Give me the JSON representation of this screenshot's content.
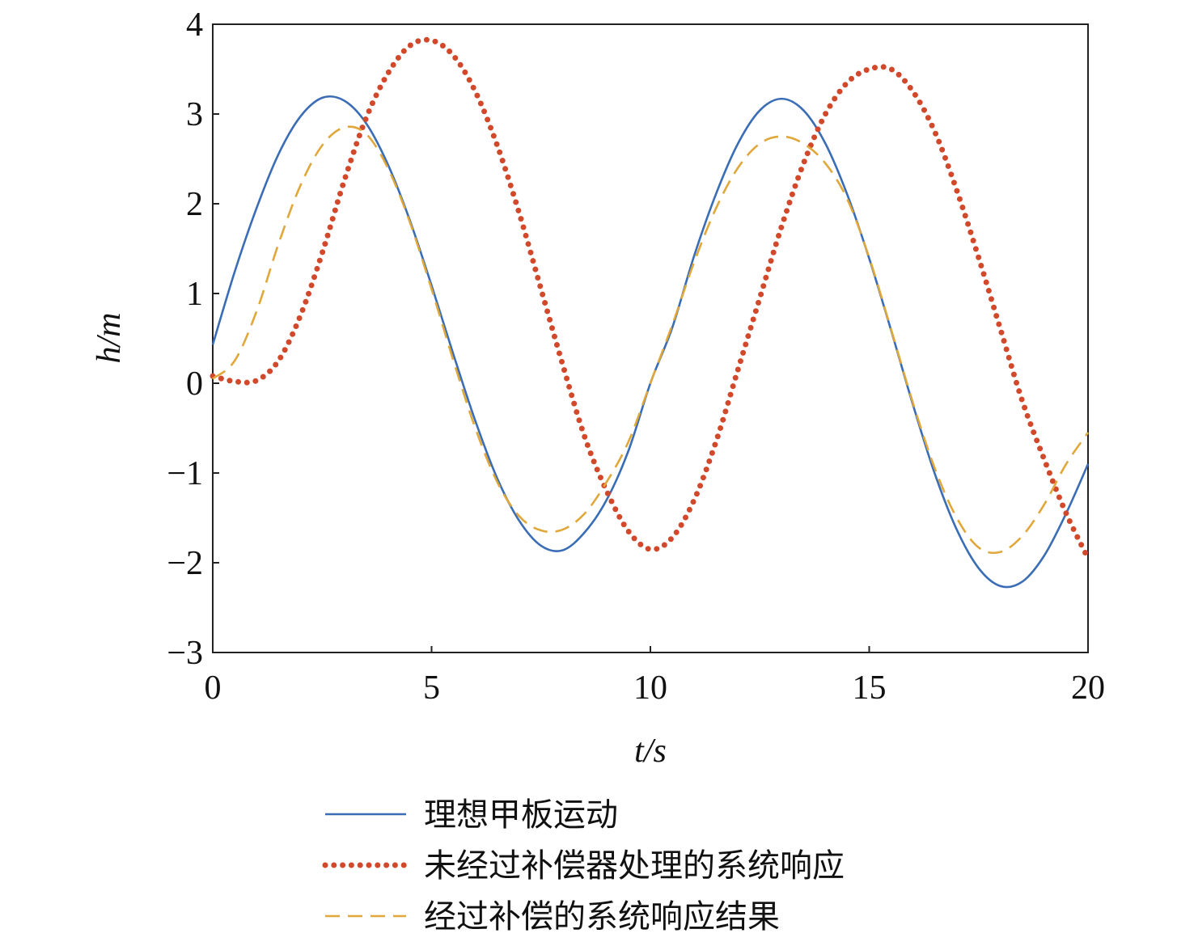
{
  "chart_data": {
    "type": "line",
    "x_label": "t/s",
    "y_label": "h/m",
    "x": [
      0,
      0.5,
      1,
      1.5,
      2,
      2.5,
      3,
      3.5,
      4,
      4.5,
      5,
      5.5,
      6,
      6.5,
      7,
      7.5,
      8,
      8.5,
      9,
      9.5,
      10,
      10.5,
      11,
      11.5,
      12,
      12.5,
      13,
      13.5,
      14,
      14.5,
      15,
      15.5,
      16,
      16.5,
      17,
      17.5,
      18,
      18.5,
      19,
      19.5,
      20
    ],
    "series": [
      {
        "name": "理想甲板运动",
        "color": "#3a6db5",
        "style": "solid",
        "values": [
          0.43,
          1.24,
          1.95,
          2.55,
          2.97,
          3.18,
          3.15,
          2.9,
          2.44,
          1.82,
          1.09,
          0.32,
          -0.42,
          -1.06,
          -1.53,
          -1.81,
          -1.86,
          -1.66,
          -1.3,
          -0.75,
          0.0,
          0.62,
          1.42,
          2.11,
          2.67,
          3.04,
          3.17,
          3.04,
          2.67,
          2.1,
          1.39,
          0.59,
          -0.24,
          -1.01,
          -1.63,
          -2.06,
          -2.26,
          -2.21,
          -1.92,
          -1.45,
          -0.9
        ]
      },
      {
        "name": "未经过补偿器处理的系统响应",
        "color": "#d2482a",
        "style": "dotted",
        "values": [
          0.08,
          0.02,
          0.03,
          0.25,
          0.75,
          1.45,
          2.25,
          2.95,
          3.45,
          3.76,
          3.82,
          3.65,
          3.25,
          2.65,
          1.9,
          1.05,
          0.2,
          -0.6,
          -1.2,
          -1.65,
          -1.85,
          -1.72,
          -1.3,
          -0.65,
          0.15,
          0.95,
          1.75,
          2.45,
          3.0,
          3.35,
          3.5,
          3.5,
          3.25,
          2.8,
          2.15,
          1.4,
          0.6,
          -0.2,
          -0.85,
          -1.45,
          -1.95
        ]
      },
      {
        "name": "经过补偿的系统响应结果",
        "color": "#e0a83a",
        "style": "dashed",
        "values": [
          0.05,
          0.25,
          0.8,
          1.55,
          2.2,
          2.65,
          2.85,
          2.78,
          2.4,
          1.8,
          1.05,
          0.25,
          -0.5,
          -1.1,
          -1.48,
          -1.64,
          -1.63,
          -1.45,
          -1.1,
          -0.65,
          0.0,
          0.65,
          1.35,
          1.95,
          2.4,
          2.67,
          2.75,
          2.67,
          2.45,
          2.05,
          1.4,
          0.6,
          -0.22,
          -0.95,
          -1.5,
          -1.83,
          -1.88,
          -1.7,
          -1.35,
          -0.9,
          -0.55
        ]
      }
    ],
    "xlim": [
      0,
      20
    ],
    "xticks": [
      0,
      5,
      10,
      15,
      20
    ],
    "ylim": [
      -3,
      4
    ],
    "yticks": [
      {
        "value": -3,
        "label": "−3"
      },
      {
        "value": -2,
        "label": "−2"
      },
      {
        "value": -1,
        "label": "−1"
      },
      0,
      1,
      2,
      3,
      4
    ],
    "grid": false,
    "legend": "bottom"
  }
}
